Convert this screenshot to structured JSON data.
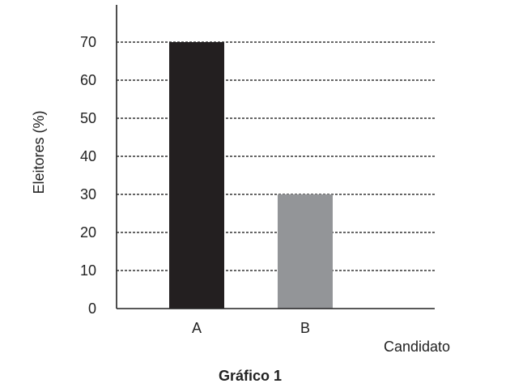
{
  "chart_data": {
    "type": "bar",
    "title": "Gráfico 1",
    "xlabel": "Candidato",
    "ylabel": "Eleitores (%)",
    "categories": [
      "A",
      "B"
    ],
    "values": [
      70,
      30
    ],
    "ylim": [
      0,
      70
    ],
    "yticks": [
      "0",
      "10",
      "20",
      "30",
      "40",
      "50",
      "60",
      "70"
    ],
    "grid": true,
    "colors": {
      "bars": [
        "#231f20",
        "#939598"
      ],
      "axis": "#222222",
      "grid": "#333333"
    }
  }
}
